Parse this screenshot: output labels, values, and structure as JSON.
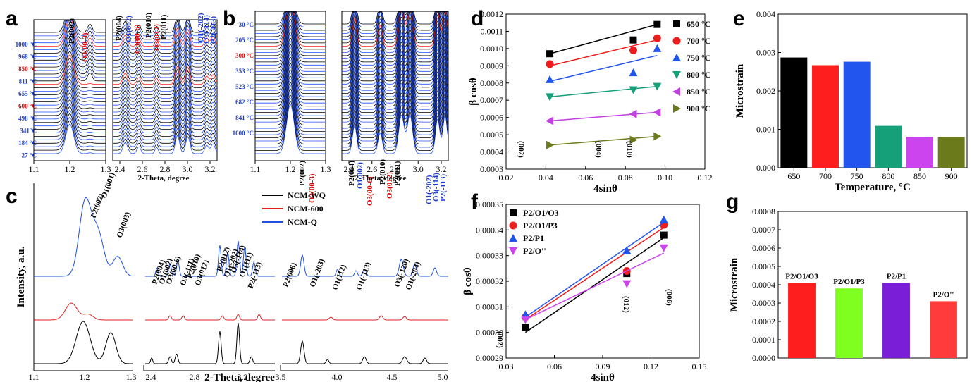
{
  "panels": {
    "a": {
      "label": "a",
      "xlabel": "2-Theta, degree",
      "xticks_left": [
        "1.1",
        "1.2",
        "1.3"
      ],
      "xticks_right": [
        "2.4",
        "2.6",
        "2.8",
        "3.0",
        "3.2"
      ],
      "temps": [
        {
          "t": "1000 °C",
          "c": "blue"
        },
        {
          "t": "968 °C",
          "c": "blue"
        },
        {
          "t": "850 °C",
          "c": "red"
        },
        {
          "t": "811 °C",
          "c": "blue"
        },
        {
          "t": "655 °C",
          "c": "blue"
        },
        {
          "t": "600 °C",
          "c": "red"
        },
        {
          "t": "498 °C",
          "c": "blue"
        },
        {
          "t": "341°C",
          "c": "blue"
        },
        {
          "t": "184 °C",
          "c": "blue"
        },
        {
          "t": "27 °C",
          "c": "blue"
        }
      ],
      "peaks": [
        {
          "t": "P2(002)",
          "c": "#000"
        },
        {
          "t": "O3(00-3)",
          "c": "#e00000"
        },
        {
          "t": "P2(004)",
          "c": "#000"
        },
        {
          "t": "O1(002)",
          "c": "#1a3cd8"
        },
        {
          "t": "O3(00-6)",
          "c": "#e00000"
        },
        {
          "t": "P2(010)",
          "c": "#000"
        },
        {
          "t": "O3(012)",
          "c": "#e00000"
        },
        {
          "t": "P2(011)",
          "c": "#000"
        },
        {
          "t": "O1(-202)",
          "c": "#1a3cd8"
        },
        {
          "t": "O3(-114)",
          "c": "#1a3cd8"
        },
        {
          "t": "P2(-113)",
          "c": "#1a3cd8"
        }
      ]
    },
    "b": {
      "label": "b",
      "xlabel": "2-Theta, degree",
      "xticks_left": [
        "1.1",
        "1.2",
        "1.3"
      ],
      "xticks_right": [
        "2.4",
        "2.6",
        "2.8",
        "3.0",
        "3.2"
      ],
      "temps": [
        {
          "t": "30 °C",
          "c": "blue"
        },
        {
          "t": "205 °C",
          "c": "blue"
        },
        {
          "t": "300 °C",
          "c": "red"
        },
        {
          "t": "353 °C",
          "c": "blue"
        },
        {
          "t": "523 °C",
          "c": "blue"
        },
        {
          "t": "682 °C",
          "c": "blue"
        },
        {
          "t": "841 °C",
          "c": "blue"
        },
        {
          "t": "1000 °C",
          "c": "blue"
        }
      ],
      "peaks": [
        {
          "t": "P2(002)",
          "c": "#000"
        },
        {
          "t": "O3(00-3)",
          "c": "#e00000"
        },
        {
          "t": "P2(004)",
          "c": "#000"
        },
        {
          "t": "O1(002)",
          "c": "#1a3cd8"
        },
        {
          "t": "O3(00-6)",
          "c": "#e00000"
        },
        {
          "t": "P2(010)",
          "c": "#000"
        },
        {
          "t": "O3(012)",
          "c": "#e00000"
        },
        {
          "t": "P2(011)",
          "c": "#000"
        },
        {
          "t": "O1(-202)",
          "c": "#1a3cd8"
        },
        {
          "t": "O3(-114)",
          "c": "#1a3cd8"
        },
        {
          "t": "P2(-113)",
          "c": "#1a3cd8"
        }
      ]
    },
    "c": {
      "label": "c",
      "ylabel": "Intensity, a.u.",
      "xlabel": "2-Theta, degree",
      "xticks": [
        "1.1",
        "1.2",
        "1.3",
        "2.4",
        "2.8",
        "3.2",
        "3.6",
        "3.5",
        "4.0",
        "4.5",
        "5.0"
      ],
      "legend": [
        {
          "name": "NCM-WQ",
          "color": "#000000"
        },
        {
          "name": "NCM-600",
          "color": "#e02020"
        },
        {
          "name": "NCM-Q",
          "color": "#2050e0"
        }
      ],
      "peak_labels": [
        "P2(002)",
        "O1(001)",
        "O3(003)",
        "P2(004)",
        "O1(002)",
        "O3(00-6)",
        "O3(-111)",
        "P2(010)",
        "O3(012)",
        "P2(012)",
        "O1(-202)",
        "O3(-114)",
        "O1(111)",
        "P2(-113)",
        "P2(006)",
        "O1(-203)",
        "O1(112)",
        "O1(-113)",
        "O3(-120)",
        "O1(-204)"
      ]
    }
  },
  "chart_data": [
    {
      "panel": "d",
      "type": "scatter",
      "xlabel": "4sinθ",
      "ylabel": "β cosθ",
      "xlim": [
        0.02,
        0.12
      ],
      "ylim": [
        0.0003,
        0.0012
      ],
      "xticks": [
        "0.02",
        "0.04",
        "0.06",
        "0.08",
        "0.10",
        "0.12"
      ],
      "yticks": [
        "0.0003",
        "0.0004",
        "0.0005",
        "0.0006",
        "0.0007",
        "0.0008",
        "0.0009",
        "0.0010",
        "0.0011",
        "0.0012"
      ],
      "annotations": [
        "(002)",
        "(004)",
        "(010)"
      ],
      "series": [
        {
          "name": "650 °C",
          "color": "#000000",
          "marker": "square",
          "x": [
            0.042,
            0.084,
            0.096
          ],
          "y": [
            0.00097,
            0.00105,
            0.00114
          ],
          "fit": [
            0.00097,
            0.00114
          ]
        },
        {
          "name": "700 °C",
          "color": "#ee1c1c",
          "marker": "circle",
          "x": [
            0.042,
            0.084,
            0.096
          ],
          "y": [
            0.00091,
            0.00099,
            0.00106
          ],
          "fit": [
            0.0009,
            0.00105
          ]
        },
        {
          "name": "750 °C",
          "color": "#2255ee",
          "marker": "triangle-up",
          "x": [
            0.042,
            0.084,
            0.096
          ],
          "y": [
            0.00082,
            0.00086,
            0.001
          ],
          "fit": [
            0.00081,
            0.00096
          ]
        },
        {
          "name": "800 °C",
          "color": "#16a07a",
          "marker": "triangle-down",
          "x": [
            0.042,
            0.084,
            0.096
          ],
          "y": [
            0.00072,
            0.00076,
            0.00078
          ],
          "fit": [
            0.00072,
            0.00078
          ]
        },
        {
          "name": "850 °C",
          "color": "#c040e0",
          "marker": "triangle-left",
          "x": [
            0.042,
            0.084,
            0.096
          ],
          "y": [
            0.00058,
            0.00062,
            0.00063
          ],
          "fit": [
            0.00058,
            0.00063
          ]
        },
        {
          "name": "900 °C",
          "color": "#6b7a1a",
          "marker": "triangle-right",
          "x": [
            0.042,
            0.084,
            0.096
          ],
          "y": [
            0.00044,
            0.00047,
            0.00049
          ],
          "fit": [
            0.00044,
            0.00049
          ]
        }
      ]
    },
    {
      "panel": "e",
      "type": "bar",
      "xlabel": "Temperature, °C",
      "ylabel": "Microstrain",
      "ylim": [
        0,
        0.004
      ],
      "yticks": [
        "0.000",
        "0.001",
        "0.002",
        "0.003",
        "0.004"
      ],
      "categories": [
        "650",
        "700",
        "750",
        "800",
        "850",
        "900"
      ],
      "values": [
        0.00287,
        0.00267,
        0.00276,
        0.00109,
        0.0008,
        0.0008
      ],
      "colors": [
        "#000000",
        "#ff1e1e",
        "#2255ee",
        "#16a07a",
        "#cc44ee",
        "#6b7a1a"
      ]
    },
    {
      "panel": "f",
      "type": "scatter",
      "xlabel": "4sinθ",
      "ylabel": "β cosθ",
      "xlim": [
        0.03,
        0.15
      ],
      "ylim": [
        0.00029,
        0.00035
      ],
      "xticks": [
        "0.03",
        "0.06",
        "0.09",
        "0.12",
        "0.15"
      ],
      "yticks": [
        "0.00029",
        "0.00030",
        "0.00031",
        "0.00032",
        "0.00033",
        "0.00034",
        "0.00035"
      ],
      "annotations": [
        "(002)",
        "(012)",
        "(006)"
      ],
      "series": [
        {
          "name": "P2/O1/O3",
          "color": "#000000",
          "marker": "square",
          "x": [
            0.042,
            0.105,
            0.128
          ],
          "y": [
            0.000302,
            0.000323,
            0.000338
          ],
          "fit": [
            0.0003,
            0.000337
          ]
        },
        {
          "name": "P2/O1/P3",
          "color": "#ee1c1c",
          "marker": "circle",
          "x": [
            0.042,
            0.105,
            0.128
          ],
          "y": [
            0.000306,
            0.000324,
            0.000342
          ],
          "fit": [
            0.000305,
            0.000341
          ]
        },
        {
          "name": "P2/P1",
          "color": "#2255ee",
          "marker": "triangle-up",
          "x": [
            0.042,
            0.105,
            0.128
          ],
          "y": [
            0.000307,
            0.000332,
            0.000344
          ],
          "fit": [
            0.000306,
            0.000343
          ]
        },
        {
          "name": "P2/O''",
          "color": "#cc44ee",
          "marker": "triangle-down",
          "x": [
            0.042,
            0.105,
            0.128
          ],
          "y": [
            0.000305,
            0.000319,
            0.000333
          ],
          "fit": [
            0.000305,
            0.000331
          ]
        }
      ]
    },
    {
      "panel": "g",
      "type": "bar",
      "ylabel": "Microstrain",
      "ylim": [
        0,
        0.0008
      ],
      "yticks": [
        "0.0000",
        "0.0001",
        "0.0002",
        "0.0003",
        "0.0004",
        "0.0005",
        "0.0006",
        "0.0007",
        "0.0008"
      ],
      "categories": [
        "P2/O1/O3",
        "P2/O1/P3",
        "P2/P1",
        "P2/O''"
      ],
      "values": [
        0.00041,
        0.00038,
        0.00041,
        0.00031
      ],
      "colors": [
        "#ff1e1e",
        "#7fff20",
        "#7a1ed8",
        "#ff3b3b"
      ]
    }
  ]
}
